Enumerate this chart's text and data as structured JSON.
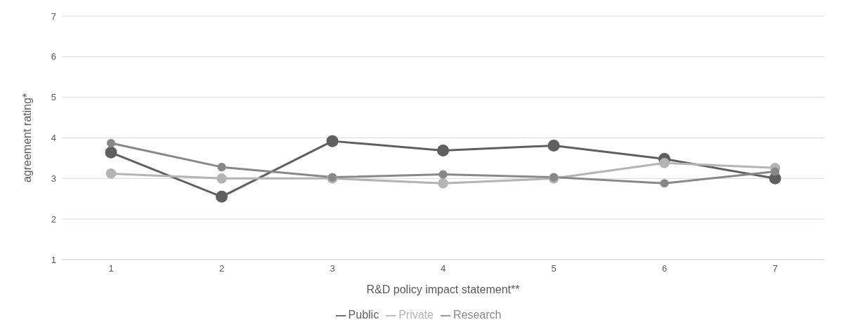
{
  "chart_data": {
    "type": "line",
    "xlabel": "R&D policy impact statement**",
    "ylabel": "agreement rating*",
    "categories": [
      "1",
      "2",
      "3",
      "4",
      "5",
      "6",
      "7"
    ],
    "series": [
      {
        "name": "Public",
        "color": "#5f5f5f",
        "values": [
          3.64,
          2.55,
          3.92,
          3.69,
          3.81,
          3.48,
          3.0
        ]
      },
      {
        "name": "Private",
        "color": "#b4b4b4",
        "values": [
          3.12,
          3.0,
          3.0,
          2.88,
          3.0,
          3.38,
          3.26
        ]
      },
      {
        "name": "Research",
        "color": "#888888",
        "values": [
          3.87,
          3.28,
          3.03,
          3.1,
          3.03,
          2.88,
          3.17
        ]
      }
    ],
    "ylim": [
      1,
      7
    ],
    "yticks": [
      1,
      2,
      3,
      4,
      5,
      6,
      7
    ],
    "grid": "y",
    "legend": "bottom",
    "marker": "circle",
    "line_style": "solid"
  }
}
